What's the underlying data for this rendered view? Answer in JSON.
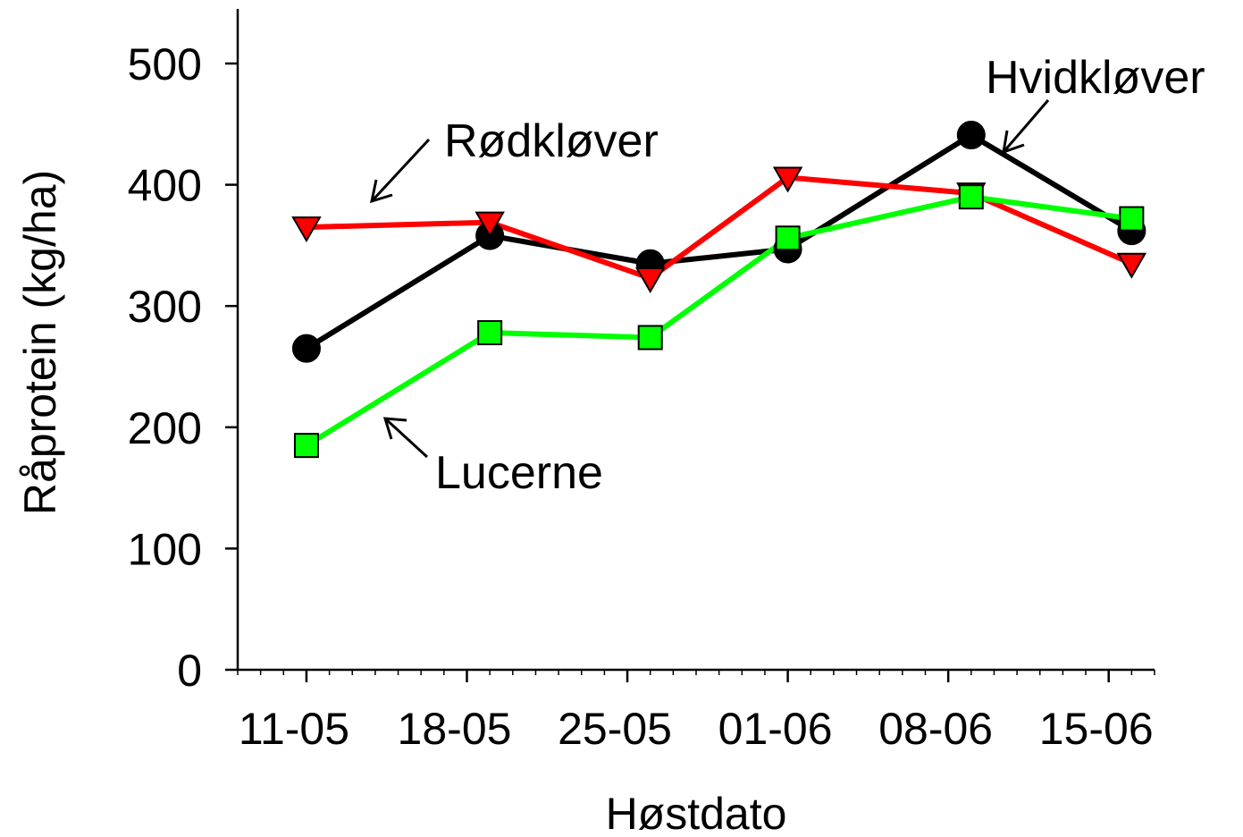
{
  "chart_data": {
    "type": "line",
    "xlabel": "Høstdato",
    "ylabel": "Råprotein (kg/ha)",
    "x_tick_labels": [
      "11-05",
      "18-05",
      "25-05",
      "01-06",
      "08-06",
      "15-06"
    ],
    "x_tick_dates": [
      "2000-05-11",
      "2000-05-18",
      "2000-05-25",
      "2000-06-01",
      "2000-06-08",
      "2000-06-15"
    ],
    "y_ticks": [
      0,
      100,
      200,
      300,
      400,
      500
    ],
    "ylim": [
      0,
      545
    ],
    "xlim": [
      "2000-05-08",
      "2000-06-17"
    ],
    "grid": false,
    "series": [
      {
        "name": "Hvidkløver",
        "color": "#000000",
        "marker": "circle",
        "points": [
          {
            "x": "2000-05-11",
            "y": 265
          },
          {
            "x": "2000-05-19",
            "y": 358
          },
          {
            "x": "2000-05-26",
            "y": 335
          },
          {
            "x": "2000-06-01",
            "y": 347
          },
          {
            "x": "2000-06-09",
            "y": 441
          },
          {
            "x": "2000-06-16",
            "y": 362
          }
        ]
      },
      {
        "name": "Rødkløver",
        "color": "#ff0000",
        "marker": "triangle-down",
        "points": [
          {
            "x": "2000-05-11",
            "y": 365
          },
          {
            "x": "2000-05-19",
            "y": 369
          },
          {
            "x": "2000-05-26",
            "y": 323
          },
          {
            "x": "2000-06-01",
            "y": 406
          },
          {
            "x": "2000-06-09",
            "y": 393
          },
          {
            "x": "2000-06-16",
            "y": 335
          }
        ]
      },
      {
        "name": "Lucerne",
        "color": "#00ff00",
        "marker": "square",
        "points": [
          {
            "x": "2000-05-11",
            "y": 185
          },
          {
            "x": "2000-05-19",
            "y": 278
          },
          {
            "x": "2000-05-26",
            "y": 274
          },
          {
            "x": "2000-06-01",
            "y": 356
          },
          {
            "x": "2000-06-09",
            "y": 390
          },
          {
            "x": "2000-06-16",
            "y": 372
          }
        ]
      }
    ],
    "annotations": [
      {
        "text": "Rødkløver",
        "series": "Rødkløver"
      },
      {
        "text": "Hvidkløver",
        "series": "Hvidkløver"
      },
      {
        "text": "Lucerne",
        "series": "Lucerne"
      }
    ]
  }
}
